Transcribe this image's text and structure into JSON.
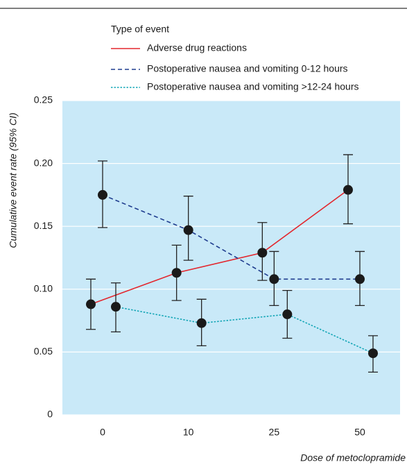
{
  "chart_data": {
    "type": "line",
    "legend_title": "Type of event",
    "x_label": "Dose of metoclopramide",
    "y_label": "Cumulative event rate (95% CI)",
    "categories": [
      "0",
      "10",
      "25",
      "50"
    ],
    "ylim": [
      0,
      0.25
    ],
    "yticks": [
      0,
      0.05,
      0.1,
      0.15,
      0.2,
      0.25
    ],
    "ytick_labels": [
      "0",
      "0.05",
      "0.10",
      "0.15",
      "0.20",
      "0.25"
    ],
    "grid": true,
    "background": "#c9e9f8",
    "series": [
      {
        "name": "Adverse drug reactions",
        "color": "#e3262d",
        "dash": "solid",
        "values": [
          0.088,
          0.113,
          0.129,
          0.179
        ],
        "lows": [
          0.068,
          0.091,
          0.107,
          0.152
        ],
        "highs": [
          0.108,
          0.135,
          0.153,
          0.207
        ]
      },
      {
        "name": "Postoperative nausea and vomiting 0-12 hours",
        "color": "#1f3d8f",
        "dash": "dashed",
        "values": [
          0.175,
          0.147,
          0.108,
          0.108
        ],
        "lows": [
          0.149,
          0.123,
          0.087,
          0.087
        ],
        "highs": [
          0.202,
          0.174,
          0.13,
          0.13
        ]
      },
      {
        "name": "Postoperative nausea and vomiting >12-24 hours",
        "color": "#12a5b5",
        "dash": "dotted",
        "values": [
          0.086,
          0.073,
          0.08,
          0.049
        ],
        "lows": [
          0.066,
          0.055,
          0.061,
          0.034
        ],
        "highs": [
          0.105,
          0.092,
          0.099,
          0.063
        ]
      }
    ]
  }
}
